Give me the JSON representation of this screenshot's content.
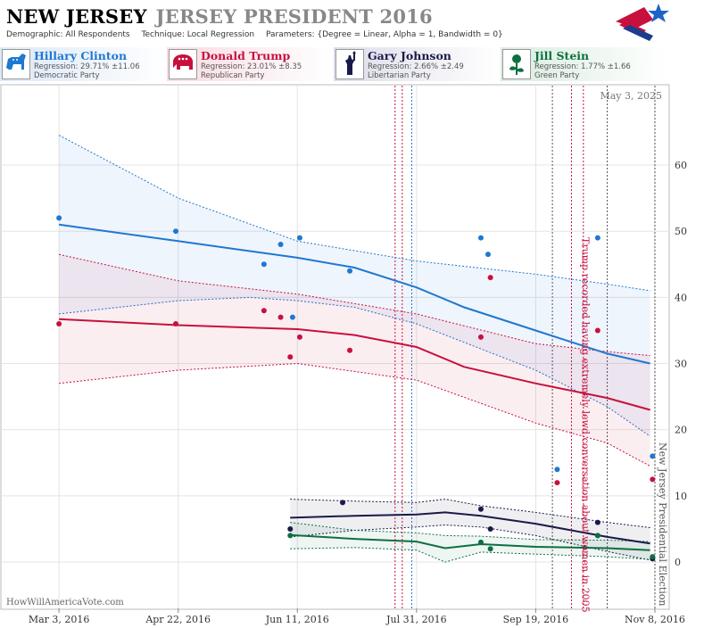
{
  "header": {
    "state": "NEW JERSEY",
    "race": "JERSEY PRESIDENT 2016",
    "demographic": "Demographic: All Respondents",
    "technique": "Technique: Local Regression",
    "parameters": "Parameters: {Degree = Linear, Alpha = 1, Bandwidth = 0}"
  },
  "candidates": [
    {
      "name": "Hillary Clinton",
      "regression": "Regression: 29.71% ±11.06",
      "party": "Democratic Party",
      "color": "#1f78d1",
      "icon": "donkey-icon"
    },
    {
      "name": "Donald Trump",
      "regression": "Regression: 23.01% ±8.35",
      "party": "Republican Party",
      "color": "#c8103e",
      "icon": "elephant-icon"
    },
    {
      "name": "Gary Johnson",
      "regression": "Regression: 2.66% ±2.49",
      "party": "Libertarian Party",
      "color": "#1a1a4a",
      "icon": "liberty-icon"
    },
    {
      "name": "Jill Stein",
      "regression": "Regression: 1.77% ±1.66",
      "party": "Green Party",
      "color": "#0d7040",
      "icon": "rose-icon"
    }
  ],
  "chart_data": {
    "type": "scatter",
    "date_label": "May 3, 2025",
    "watermark": "HowWillAmericaVote.com",
    "x_ticks": [
      "Mar 3, 2016",
      "Apr 22, 2016",
      "Jun 11, 2016",
      "Jul 31, 2016",
      "Sep 19, 2016",
      "Nov 8, 2016"
    ],
    "y_ticks": [
      0,
      10,
      20,
      30,
      40,
      50,
      60
    ],
    "ylim": [
      -7,
      72
    ],
    "xlim": [
      "2016-02-08",
      "2016-11-14"
    ],
    "grid": true,
    "annotations": [
      {
        "date": "2016-10-07",
        "text": "Trump recorded having extremely lewd conversation about women in 2005",
        "color": "#c8103e"
      },
      {
        "date": "2016-11-08",
        "text": "New Jersey Presidential Election",
        "color": "#555555"
      }
    ],
    "event_lines": [
      {
        "date": "2016-07-22",
        "color": "#c8103e"
      },
      {
        "date": "2016-07-25",
        "color": "#c8103e"
      },
      {
        "date": "2016-07-29",
        "color": "#1f78d1"
      },
      {
        "date": "2016-09-26",
        "color": "#555555"
      },
      {
        "date": "2016-10-04",
        "color": "#c8103e"
      },
      {
        "date": "2016-10-09",
        "color": "#c8103e"
      },
      {
        "date": "2016-10-19",
        "color": "#555555"
      },
      {
        "date": "2016-11-08",
        "color": "#555555"
      }
    ],
    "series": [
      {
        "name": "Hillary Clinton",
        "color": "#1f78d1",
        "points": [
          [
            "2016-03-03",
            52
          ],
          [
            "2016-04-21",
            50
          ],
          [
            "2016-05-28",
            45
          ],
          [
            "2016-06-04",
            48
          ],
          [
            "2016-06-09",
            37
          ],
          [
            "2016-06-12",
            49
          ],
          [
            "2016-07-03",
            44
          ],
          [
            "2016-08-27",
            49
          ],
          [
            "2016-08-30",
            46.5
          ],
          [
            "2016-09-28",
            14
          ],
          [
            "2016-10-15",
            49
          ],
          [
            "2016-11-07",
            16
          ]
        ],
        "trend": [
          [
            "2016-03-03",
            51
          ],
          [
            "2016-04-22",
            48.5
          ],
          [
            "2016-06-11",
            46
          ],
          [
            "2016-07-05",
            44.5
          ],
          [
            "2016-07-31",
            41.5
          ],
          [
            "2016-08-20",
            38.5
          ],
          [
            "2016-09-19",
            35
          ],
          [
            "2016-10-19",
            31.5
          ],
          [
            "2016-11-06",
            30
          ]
        ],
        "upper": [
          [
            "2016-03-03",
            64.5
          ],
          [
            "2016-04-22",
            55
          ],
          [
            "2016-06-11",
            48.5
          ],
          [
            "2016-07-31",
            45.5
          ],
          [
            "2016-09-19",
            43.5
          ],
          [
            "2016-10-19",
            42
          ],
          [
            "2016-11-06",
            41
          ]
        ],
        "lower": [
          [
            "2016-03-03",
            37.5
          ],
          [
            "2016-04-22",
            39.5
          ],
          [
            "2016-05-22",
            40
          ],
          [
            "2016-06-11",
            39.5
          ],
          [
            "2016-07-05",
            38.5
          ],
          [
            "2016-07-31",
            36
          ],
          [
            "2016-09-19",
            29
          ],
          [
            "2016-10-19",
            23.5
          ],
          [
            "2016-11-06",
            19
          ]
        ]
      },
      {
        "name": "Donald Trump",
        "color": "#c8103e",
        "points": [
          [
            "2016-03-03",
            36
          ],
          [
            "2016-04-21",
            36
          ],
          [
            "2016-05-28",
            38
          ],
          [
            "2016-06-04",
            37
          ],
          [
            "2016-06-08",
            31
          ],
          [
            "2016-06-12",
            34
          ],
          [
            "2016-07-03",
            32
          ],
          [
            "2016-08-27",
            34
          ],
          [
            "2016-08-31",
            43
          ],
          [
            "2016-09-28",
            12
          ],
          [
            "2016-10-15",
            35
          ],
          [
            "2016-11-07",
            12.5
          ]
        ],
        "trend": [
          [
            "2016-03-03",
            36.7
          ],
          [
            "2016-04-22",
            35.8
          ],
          [
            "2016-06-11",
            35.2
          ],
          [
            "2016-07-05",
            34.3
          ],
          [
            "2016-07-31",
            32.5
          ],
          [
            "2016-08-20",
            29.5
          ],
          [
            "2016-09-19",
            27
          ],
          [
            "2016-10-19",
            24.8
          ],
          [
            "2016-11-06",
            23
          ]
        ],
        "upper": [
          [
            "2016-03-03",
            46.5
          ],
          [
            "2016-04-22",
            42.5
          ],
          [
            "2016-06-11",
            40.5
          ],
          [
            "2016-07-31",
            37.5
          ],
          [
            "2016-09-19",
            33
          ],
          [
            "2016-10-19",
            31.8
          ],
          [
            "2016-11-06",
            31.2
          ]
        ],
        "lower": [
          [
            "2016-03-03",
            27
          ],
          [
            "2016-04-22",
            29
          ],
          [
            "2016-06-11",
            30
          ],
          [
            "2016-07-31",
            27.5
          ],
          [
            "2016-09-19",
            21
          ],
          [
            "2016-10-19",
            18
          ],
          [
            "2016-11-06",
            14.5
          ]
        ]
      },
      {
        "name": "Gary Johnson",
        "color": "#1a1a4a",
        "points": [
          [
            "2016-06-08",
            5
          ],
          [
            "2016-06-30",
            9
          ],
          [
            "2016-08-27",
            8
          ],
          [
            "2016-08-31",
            5
          ],
          [
            "2016-10-15",
            6
          ],
          [
            "2016-10-15",
            4
          ],
          [
            "2016-11-07",
            0.5
          ]
        ],
        "trend": [
          [
            "2016-06-08",
            6.7
          ],
          [
            "2016-07-05",
            7
          ],
          [
            "2016-07-31",
            7.2
          ],
          [
            "2016-08-12",
            7.5
          ],
          [
            "2016-08-27",
            7
          ],
          [
            "2016-09-19",
            5.8
          ],
          [
            "2016-10-19",
            3.8
          ],
          [
            "2016-11-06",
            2.8
          ]
        ],
        "upper": [
          [
            "2016-06-08",
            9.5
          ],
          [
            "2016-07-05",
            9.2
          ],
          [
            "2016-07-31",
            9
          ],
          [
            "2016-08-12",
            9.5
          ],
          [
            "2016-08-27",
            8.5
          ],
          [
            "2016-09-19",
            7.5
          ],
          [
            "2016-10-19",
            6
          ],
          [
            "2016-11-06",
            5.2
          ]
        ],
        "lower": [
          [
            "2016-06-08",
            3.8
          ],
          [
            "2016-07-05",
            4.8
          ],
          [
            "2016-07-31",
            5.3
          ],
          [
            "2016-08-12",
            5.6
          ],
          [
            "2016-08-27",
            5.3
          ],
          [
            "2016-09-19",
            4
          ],
          [
            "2016-10-19",
            1.6
          ],
          [
            "2016-11-06",
            0.3
          ]
        ]
      },
      {
        "name": "Jill Stein",
        "color": "#0d7040",
        "points": [
          [
            "2016-06-08",
            4
          ],
          [
            "2016-08-27",
            3
          ],
          [
            "2016-08-31",
            2
          ],
          [
            "2016-10-15",
            4
          ],
          [
            "2016-11-07",
            0.8
          ]
        ],
        "trend": [
          [
            "2016-06-08",
            4.1
          ],
          [
            "2016-07-05",
            3.5
          ],
          [
            "2016-07-31",
            3.1
          ],
          [
            "2016-08-12",
            2.1
          ],
          [
            "2016-08-27",
            2.7
          ],
          [
            "2016-09-19",
            2.3
          ],
          [
            "2016-10-19",
            2.1
          ],
          [
            "2016-11-06",
            1.8
          ]
        ],
        "upper": [
          [
            "2016-06-08",
            6
          ],
          [
            "2016-07-05",
            4.8
          ],
          [
            "2016-07-31",
            4.4
          ],
          [
            "2016-08-12",
            4
          ],
          [
            "2016-08-27",
            3.9
          ],
          [
            "2016-09-19",
            3.4
          ],
          [
            "2016-10-19",
            3.3
          ],
          [
            "2016-11-06",
            3.1
          ]
        ],
        "lower": [
          [
            "2016-06-08",
            2
          ],
          [
            "2016-07-05",
            2.2
          ],
          [
            "2016-07-31",
            1.8
          ],
          [
            "2016-08-12",
            0
          ],
          [
            "2016-08-27",
            1.5
          ],
          [
            "2016-09-19",
            1.2
          ],
          [
            "2016-10-19",
            0.8
          ],
          [
            "2016-11-06",
            0.4
          ]
        ]
      }
    ]
  }
}
